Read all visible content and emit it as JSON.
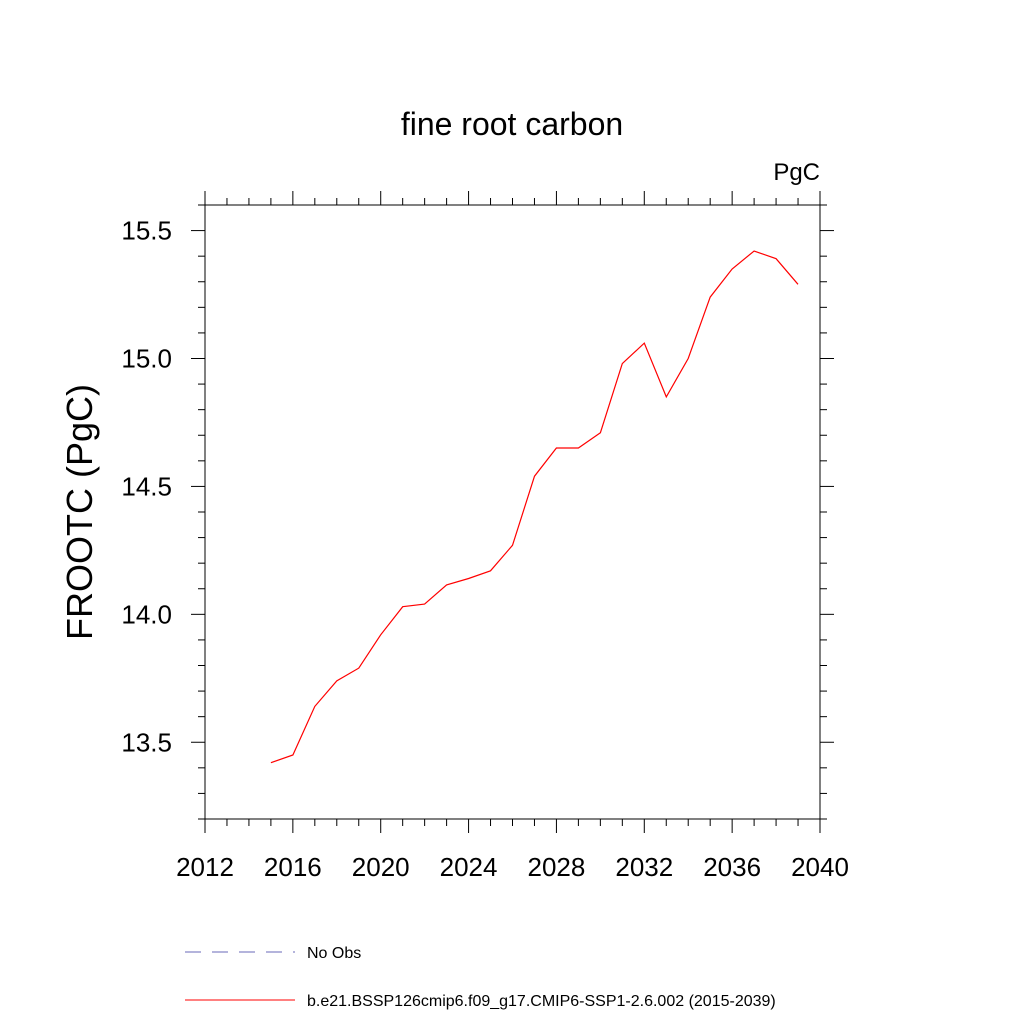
{
  "chart_data": {
    "type": "line",
    "title": "fine root carbon",
    "units": "PgC",
    "xlabel": "",
    "ylabel": "FROOTC  (PgC)",
    "xlim": [
      2012,
      2040
    ],
    "ylim": [
      13.2,
      15.6
    ],
    "x_ticks": [
      "2012",
      "2016",
      "2020",
      "2024",
      "2028",
      "2032",
      "2036",
      "2040"
    ],
    "y_ticks": [
      "13.5",
      "14.0",
      "14.5",
      "15.0",
      "15.5"
    ],
    "grid": false,
    "legend_position": "bottom",
    "legend": [
      {
        "label": "No Obs",
        "color": "#6a6ab8",
        "style": "dashed"
      },
      {
        "label": "b.e21.BSSP126cmip6.f09_g17.CMIP6-SSP1-2.6.002 (2015-2039)",
        "color": "#ff0000",
        "style": "solid"
      }
    ],
    "series": [
      {
        "name": "b.e21.BSSP126cmip6.f09_g17.CMIP6-SSP1-2.6.002 (2015-2039)",
        "color": "#ff0000",
        "x": [
          2015,
          2016,
          2017,
          2018,
          2019,
          2020,
          2021,
          2022,
          2023,
          2024,
          2025,
          2026,
          2027,
          2028,
          2029,
          2030,
          2031,
          2032,
          2033,
          2034,
          2035,
          2036,
          2037,
          2038,
          2039
        ],
        "y": [
          13.42,
          13.45,
          13.64,
          13.74,
          13.79,
          13.92,
          14.03,
          14.04,
          14.115,
          14.14,
          14.17,
          14.27,
          14.54,
          14.65,
          14.65,
          14.71,
          14.98,
          15.06,
          14.85,
          15.0,
          15.24,
          15.35,
          15.42,
          15.39,
          15.29
        ]
      }
    ]
  }
}
